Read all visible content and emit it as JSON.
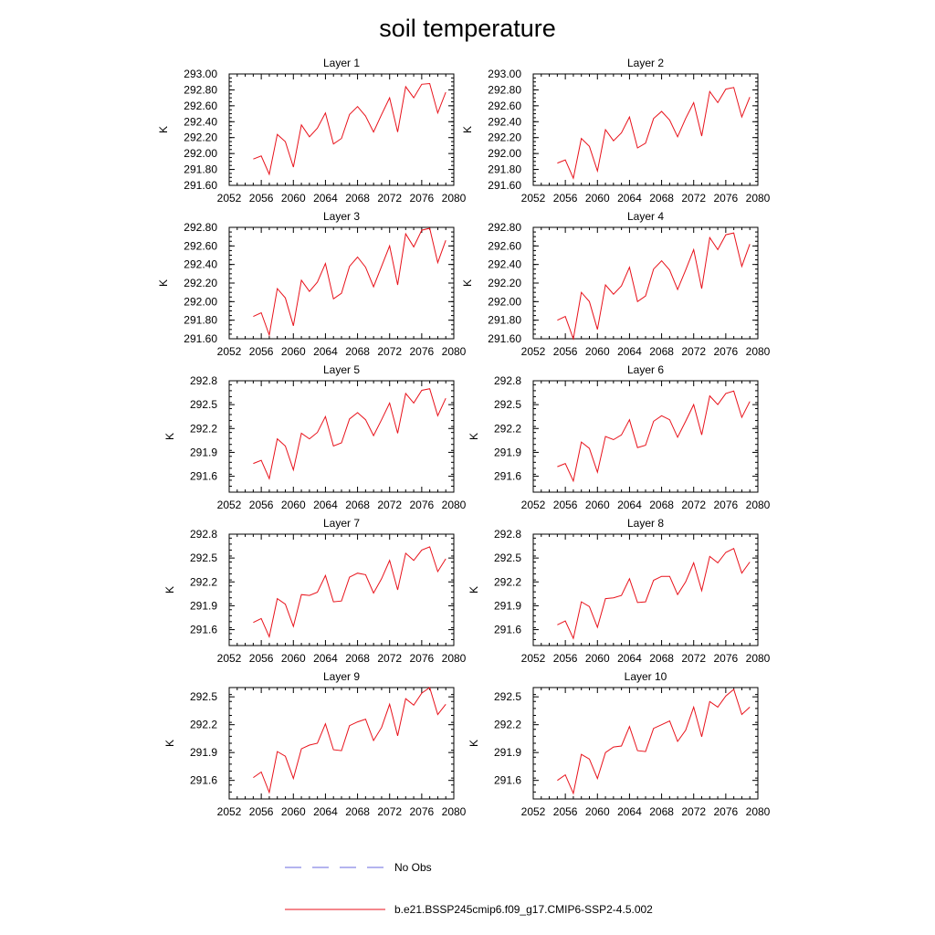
{
  "title": "soil temperature",
  "legend": [
    {
      "label": "No Obs",
      "color": "#6a6adf",
      "style": "dashed"
    },
    {
      "label": "b.e21.BSSP245cmip6.f09_g17.CMIP6-SSP2-4.5.002",
      "color": "#e8121b",
      "style": "solid"
    }
  ],
  "chart_data": [
    {
      "type": "line",
      "title": "Layer 1",
      "ylabel": "K",
      "xlim": [
        2052,
        2080
      ],
      "ylim": [
        291.6,
        293.0
      ],
      "xticks": [
        "2052",
        "2056",
        "2060",
        "2064",
        "2068",
        "2072",
        "2076",
        "2080"
      ],
      "yticks": [
        "291.60",
        "291.80",
        "292.00",
        "292.20",
        "292.40",
        "292.60",
        "292.80",
        "293.00"
      ],
      "series": [
        {
          "color": "#e8121b",
          "x": [
            2055,
            2056,
            2057,
            2058,
            2059,
            2060,
            2061,
            2062,
            2063,
            2064,
            2065,
            2066,
            2067,
            2068,
            2069,
            2070,
            2071,
            2072,
            2073,
            2074,
            2075,
            2076,
            2077,
            2078,
            2079
          ],
          "values": [
            291.93,
            291.97,
            291.74,
            292.24,
            292.15,
            291.83,
            292.36,
            292.21,
            292.32,
            292.51,
            292.12,
            292.19,
            292.49,
            292.59,
            292.47,
            292.27,
            292.49,
            292.7,
            292.27,
            292.84,
            292.7,
            292.87,
            292.88,
            292.51,
            292.77
          ]
        }
      ]
    },
    {
      "type": "line",
      "title": "Layer 2",
      "ylabel": "K",
      "xlim": [
        2052,
        2080
      ],
      "ylim": [
        291.6,
        293.0
      ],
      "xticks": [
        "2052",
        "2056",
        "2060",
        "2064",
        "2068",
        "2072",
        "2076",
        "2080"
      ],
      "yticks": [
        "291.60",
        "291.80",
        "292.00",
        "292.20",
        "292.40",
        "292.60",
        "292.80",
        "293.00"
      ],
      "series": [
        {
          "color": "#e8121b",
          "x": [
            2055,
            2056,
            2057,
            2058,
            2059,
            2060,
            2061,
            2062,
            2063,
            2064,
            2065,
            2066,
            2067,
            2068,
            2069,
            2070,
            2071,
            2072,
            2073,
            2074,
            2075,
            2076,
            2077,
            2078,
            2079
          ],
          "values": [
            291.88,
            291.92,
            291.69,
            292.19,
            292.09,
            291.78,
            292.3,
            292.16,
            292.26,
            292.46,
            292.07,
            292.13,
            292.44,
            292.53,
            292.42,
            292.21,
            292.44,
            292.64,
            292.22,
            292.78,
            292.64,
            292.81,
            292.83,
            292.46,
            292.71
          ]
        }
      ]
    },
    {
      "type": "line",
      "title": "Layer 3",
      "ylabel": "K",
      "xlim": [
        2052,
        2080
      ],
      "ylim": [
        291.6,
        292.8
      ],
      "xticks": [
        "2052",
        "2056",
        "2060",
        "2064",
        "2068",
        "2072",
        "2076",
        "2080"
      ],
      "yticks": [
        "291.60",
        "291.80",
        "292.00",
        "292.20",
        "292.40",
        "292.60",
        "292.80"
      ],
      "series": [
        {
          "color": "#e8121b",
          "x": [
            2055,
            2056,
            2057,
            2058,
            2059,
            2060,
            2061,
            2062,
            2063,
            2064,
            2065,
            2066,
            2067,
            2068,
            2069,
            2070,
            2071,
            2072,
            2073,
            2074,
            2075,
            2076,
            2077,
            2078,
            2079
          ],
          "values": [
            291.84,
            291.88,
            291.64,
            292.14,
            292.04,
            291.74,
            292.23,
            292.11,
            292.21,
            292.41,
            292.03,
            292.09,
            292.38,
            292.48,
            292.37,
            292.16,
            292.38,
            292.6,
            292.18,
            292.73,
            292.59,
            292.77,
            292.79,
            292.42,
            292.66
          ]
        }
      ]
    },
    {
      "type": "line",
      "title": "Layer 4",
      "ylabel": "K",
      "xlim": [
        2052,
        2080
      ],
      "ylim": [
        291.6,
        292.8
      ],
      "xticks": [
        "2052",
        "2056",
        "2060",
        "2064",
        "2068",
        "2072",
        "2076",
        "2080"
      ],
      "yticks": [
        "291.60",
        "291.80",
        "292.00",
        "292.20",
        "292.40",
        "292.60",
        "292.80"
      ],
      "series": [
        {
          "color": "#e8121b",
          "x": [
            2055,
            2056,
            2057,
            2058,
            2059,
            2060,
            2061,
            2062,
            2063,
            2064,
            2065,
            2066,
            2067,
            2068,
            2069,
            2070,
            2071,
            2072,
            2073,
            2074,
            2075,
            2076,
            2077,
            2078,
            2079
          ],
          "values": [
            291.8,
            291.84,
            291.6,
            292.1,
            292.0,
            291.7,
            292.18,
            292.08,
            292.17,
            292.37,
            292.0,
            292.06,
            292.35,
            292.44,
            292.34,
            292.13,
            292.34,
            292.56,
            292.14,
            292.69,
            292.56,
            292.72,
            292.74,
            292.38,
            292.62
          ]
        }
      ]
    },
    {
      "type": "line",
      "title": "Layer 5",
      "ylabel": "K",
      "xlim": [
        2052,
        2080
      ],
      "ylim": [
        291.4,
        292.8
      ],
      "xticks": [
        "2052",
        "2056",
        "2060",
        "2064",
        "2068",
        "2072",
        "2076",
        "2080"
      ],
      "yticks": [
        "291.6",
        "291.9",
        "292.2",
        "292.5",
        "292.8"
      ],
      "series": [
        {
          "color": "#e8121b",
          "x": [
            2055,
            2056,
            2057,
            2058,
            2059,
            2060,
            2061,
            2062,
            2063,
            2064,
            2065,
            2066,
            2067,
            2068,
            2069,
            2070,
            2071,
            2072,
            2073,
            2074,
            2075,
            2076,
            2077,
            2078,
            2079
          ],
          "values": [
            291.76,
            291.8,
            291.57,
            292.07,
            291.98,
            291.68,
            292.14,
            292.07,
            292.15,
            292.35,
            291.98,
            292.02,
            292.32,
            292.4,
            292.31,
            292.11,
            292.31,
            292.52,
            292.14,
            292.64,
            292.52,
            292.68,
            292.7,
            292.36,
            292.58
          ]
        }
      ]
    },
    {
      "type": "line",
      "title": "Layer 6",
      "ylabel": "K",
      "xlim": [
        2052,
        2080
      ],
      "ylim": [
        291.4,
        292.8
      ],
      "xticks": [
        "2052",
        "2056",
        "2060",
        "2064",
        "2068",
        "2072",
        "2076",
        "2080"
      ],
      "yticks": [
        "291.6",
        "291.9",
        "292.2",
        "292.5",
        "292.8"
      ],
      "series": [
        {
          "color": "#e8121b",
          "x": [
            2055,
            2056,
            2057,
            2058,
            2059,
            2060,
            2061,
            2062,
            2063,
            2064,
            2065,
            2066,
            2067,
            2068,
            2069,
            2070,
            2071,
            2072,
            2073,
            2074,
            2075,
            2076,
            2077,
            2078,
            2079
          ],
          "values": [
            291.72,
            291.76,
            291.54,
            292.03,
            291.95,
            291.65,
            292.1,
            292.06,
            292.12,
            292.31,
            291.96,
            291.99,
            292.29,
            292.36,
            292.31,
            292.09,
            292.29,
            292.5,
            292.12,
            292.61,
            292.5,
            292.64,
            292.67,
            292.34,
            292.54
          ]
        }
      ]
    },
    {
      "type": "line",
      "title": "Layer 7",
      "ylabel": "K",
      "xlim": [
        2052,
        2080
      ],
      "ylim": [
        291.4,
        292.8
      ],
      "xticks": [
        "2052",
        "2056",
        "2060",
        "2064",
        "2068",
        "2072",
        "2076",
        "2080"
      ],
      "yticks": [
        "291.6",
        "291.9",
        "292.2",
        "292.5",
        "292.8"
      ],
      "series": [
        {
          "color": "#e8121b",
          "x": [
            2055,
            2056,
            2057,
            2058,
            2059,
            2060,
            2061,
            2062,
            2063,
            2064,
            2065,
            2066,
            2067,
            2068,
            2069,
            2070,
            2071,
            2072,
            2073,
            2074,
            2075,
            2076,
            2077,
            2078,
            2079
          ],
          "values": [
            291.69,
            291.74,
            291.51,
            291.99,
            291.92,
            291.64,
            292.04,
            292.03,
            292.07,
            292.28,
            291.95,
            291.96,
            292.26,
            292.31,
            292.29,
            292.06,
            292.24,
            292.47,
            292.1,
            292.56,
            292.47,
            292.6,
            292.64,
            292.33,
            292.49
          ]
        }
      ]
    },
    {
      "type": "line",
      "title": "Layer 8",
      "ylabel": "K",
      "xlim": [
        2052,
        2080
      ],
      "ylim": [
        291.4,
        292.8
      ],
      "xticks": [
        "2052",
        "2056",
        "2060",
        "2064",
        "2068",
        "2072",
        "2076",
        "2080"
      ],
      "yticks": [
        "291.6",
        "291.9",
        "292.2",
        "292.5",
        "292.8"
      ],
      "series": [
        {
          "color": "#e8121b",
          "x": [
            2055,
            2056,
            2057,
            2058,
            2059,
            2060,
            2061,
            2062,
            2063,
            2064,
            2065,
            2066,
            2067,
            2068,
            2069,
            2070,
            2071,
            2072,
            2073,
            2074,
            2075,
            2076,
            2077,
            2078,
            2079
          ],
          "values": [
            291.66,
            291.71,
            291.49,
            291.95,
            291.89,
            291.63,
            291.99,
            292.0,
            292.03,
            292.24,
            291.94,
            291.95,
            292.22,
            292.27,
            292.27,
            292.04,
            292.2,
            292.44,
            292.09,
            292.52,
            292.44,
            292.57,
            292.62,
            292.31,
            292.45
          ]
        }
      ]
    },
    {
      "type": "line",
      "title": "Layer 9",
      "ylabel": "K",
      "xlim": [
        2052,
        2080
      ],
      "ylim": [
        291.4,
        292.6
      ],
      "xticks": [
        "2052",
        "2056",
        "2060",
        "2064",
        "2068",
        "2072",
        "2076",
        "2080"
      ],
      "yticks": [
        "291.6",
        "291.9",
        "292.2",
        "292.5"
      ],
      "series": [
        {
          "color": "#e8121b",
          "x": [
            2055,
            2056,
            2057,
            2058,
            2059,
            2060,
            2061,
            2062,
            2063,
            2064,
            2065,
            2066,
            2067,
            2068,
            2069,
            2070,
            2071,
            2072,
            2073,
            2074,
            2075,
            2076,
            2077,
            2078,
            2079
          ],
          "values": [
            291.63,
            291.69,
            291.47,
            291.91,
            291.86,
            291.62,
            291.94,
            291.98,
            292.0,
            292.21,
            291.93,
            291.92,
            292.19,
            292.23,
            292.26,
            292.03,
            292.17,
            292.42,
            292.08,
            292.48,
            292.41,
            292.54,
            292.6,
            292.31,
            292.42
          ]
        }
      ]
    },
    {
      "type": "line",
      "title": "Layer 10",
      "ylabel": "K",
      "xlim": [
        2052,
        2080
      ],
      "ylim": [
        291.4,
        292.6
      ],
      "xticks": [
        "2052",
        "2056",
        "2060",
        "2064",
        "2068",
        "2072",
        "2076",
        "2080"
      ],
      "yticks": [
        "291.6",
        "291.9",
        "292.2",
        "292.5"
      ],
      "series": [
        {
          "color": "#e8121b",
          "x": [
            2055,
            2056,
            2057,
            2058,
            2059,
            2060,
            2061,
            2062,
            2063,
            2064,
            2065,
            2066,
            2067,
            2068,
            2069,
            2070,
            2071,
            2072,
            2073,
            2074,
            2075,
            2076,
            2077,
            2078,
            2079
          ],
          "values": [
            291.6,
            291.66,
            291.46,
            291.88,
            291.83,
            291.62,
            291.9,
            291.96,
            291.97,
            292.18,
            291.92,
            291.91,
            292.16,
            292.2,
            292.24,
            292.02,
            292.14,
            292.39,
            292.07,
            292.45,
            292.39,
            292.51,
            292.58,
            292.31,
            292.39
          ]
        }
      ]
    }
  ]
}
